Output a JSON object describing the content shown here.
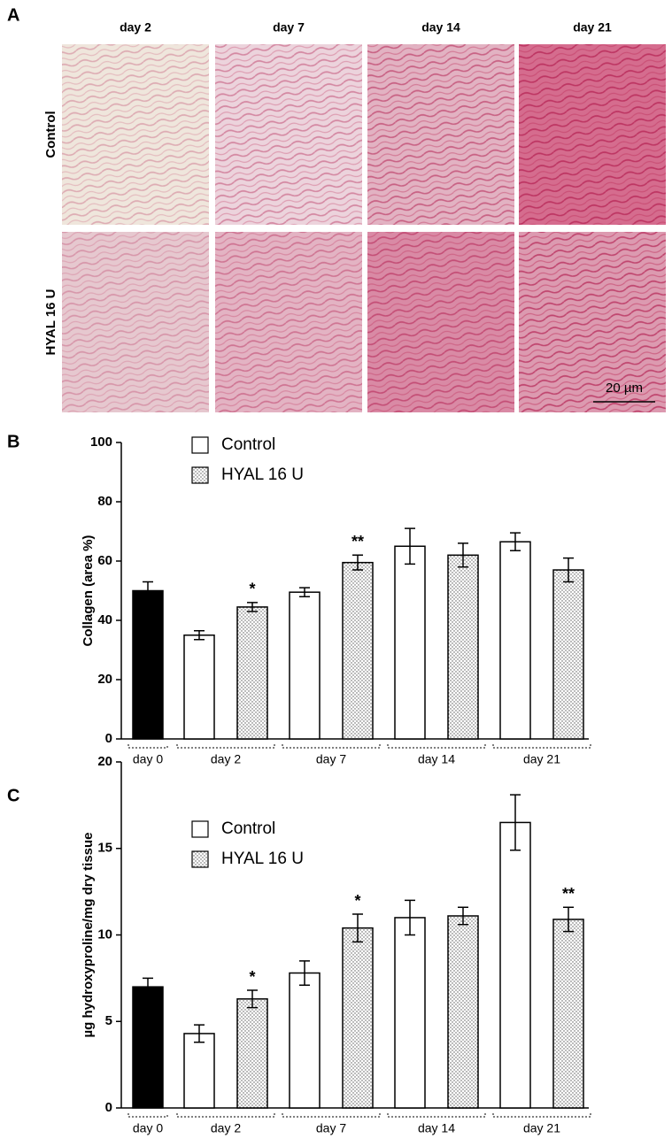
{
  "panel_a": {
    "label": "A",
    "columns": [
      "day 2",
      "day 7",
      "day 14",
      "day 21"
    ],
    "rows": [
      "Control",
      "HYAL 16 U"
    ],
    "scale_bar": "20 µm"
  },
  "chart_data": [
    {
      "type": "bar",
      "panel": "B",
      "ylabel": "Collagen (area %)",
      "categories": [
        "day 0",
        "day 2",
        "day 7",
        "day 14",
        "day 21"
      ],
      "solid_bar": {
        "value": 50,
        "error": 3,
        "color": "#000000"
      },
      "series": [
        {
          "name": "Control",
          "color": "#ffffff",
          "values": [
            null,
            35,
            49.5,
            65,
            66.5
          ],
          "errors": [
            null,
            1.5,
            1.5,
            6,
            3
          ]
        },
        {
          "name": "HYAL 16 U",
          "color": "#ffffff",
          "pattern": "dots",
          "values": [
            null,
            44.5,
            59.5,
            62,
            57
          ],
          "errors": [
            null,
            1.5,
            2.5,
            4,
            4
          ],
          "significance": [
            null,
            "*",
            "**",
            null,
            null
          ]
        }
      ],
      "ylim": [
        0,
        100
      ],
      "yticks": [
        0,
        20,
        40,
        60,
        80,
        100
      ]
    },
    {
      "type": "bar",
      "panel": "C",
      "ylabel": "µg hydroxyproline/mg dry tissue",
      "categories": [
        "day 0",
        "day 2",
        "day 7",
        "day 14",
        "day 21"
      ],
      "solid_bar": {
        "value": 7,
        "error": 0.5,
        "color": "#000000"
      },
      "series": [
        {
          "name": "Control",
          "color": "#ffffff",
          "values": [
            null,
            4.3,
            7.8,
            11,
            16.5
          ],
          "errors": [
            null,
            0.5,
            0.7,
            1,
            1.6
          ]
        },
        {
          "name": "HYAL 16 U",
          "color": "#ffffff",
          "pattern": "dots",
          "values": [
            null,
            6.3,
            10.4,
            11.1,
            10.9
          ],
          "errors": [
            null,
            0.5,
            0.8,
            0.5,
            0.7
          ],
          "significance": [
            null,
            "*",
            "*",
            null,
            "**"
          ]
        }
      ],
      "ylim": [
        0,
        20
      ],
      "yticks": [
        0,
        5,
        10,
        15,
        20
      ]
    }
  ]
}
